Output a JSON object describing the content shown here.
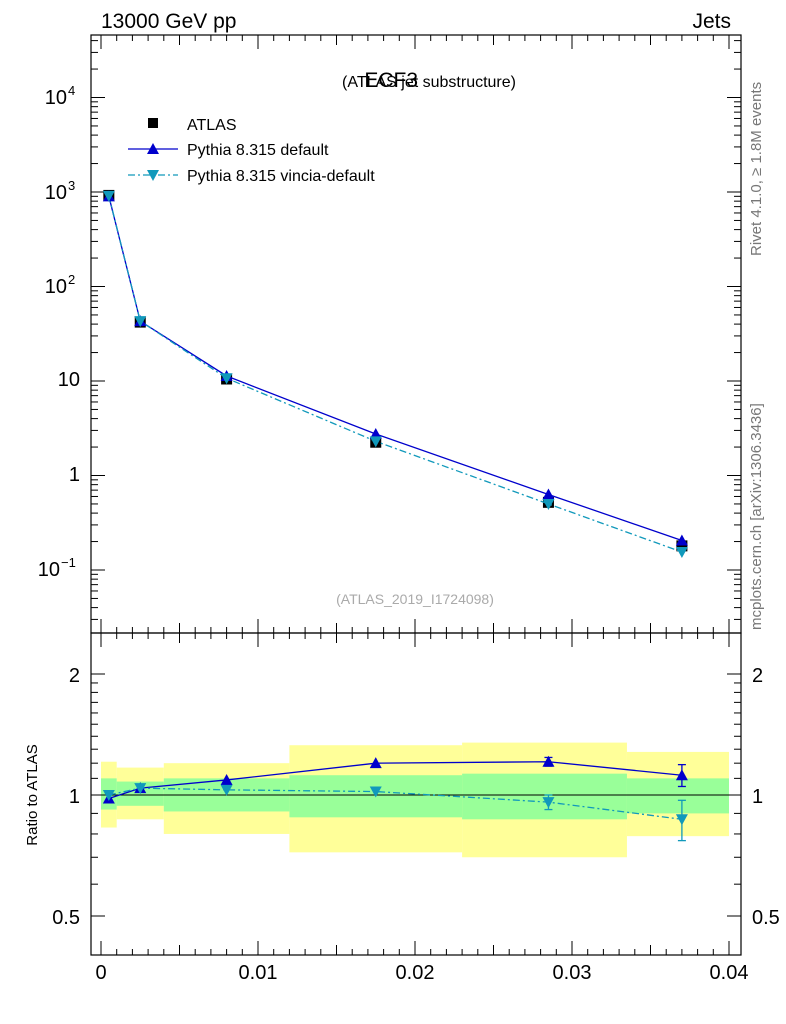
{
  "header": {
    "left": "13000 GeV pp",
    "right": "Jets"
  },
  "side_labels": {
    "rivet": "Rivet 4.1.0, ≥ 1.8M events",
    "mcplots": "mcplots.cern.ch [arXiv:1306.3436]"
  },
  "colors": {
    "atlas": "#000000",
    "default": "#0000cc",
    "vincia": "#1199bb",
    "band_outer": "#ffff99",
    "band_inner": "#99ff99"
  },
  "chart_data": [
    {
      "type": "line",
      "panel": "main",
      "title": "ECF3",
      "subtitle": "(ATLAS jet substructure)",
      "watermark": "(ATLAS_2019_I1724098)",
      "yscale": "log",
      "ylim": [
        0.025,
        40000
      ],
      "xlim": [
        -0.0005,
        0.04
      ],
      "ytick_labels": {
        "t4": [
          "10",
          "4"
        ],
        "t3": [
          "10",
          "3"
        ],
        "t2": [
          "10",
          "2"
        ],
        "t1": "10",
        "t0": "1",
        "tm1": [
          "10",
          "−1"
        ]
      },
      "legend": {
        "position": "top-left",
        "atlas": "ATLAS",
        "default": "Pythia 8.315 default",
        "vincia": "Pythia 8.315 vincia-default"
      },
      "series": [
        {
          "name": "ATLAS",
          "marker": "square",
          "x": [
            0.0005,
            0.0025,
            0.008,
            0.0175,
            0.0285,
            0.037
          ],
          "values": [
            920,
            42,
            10.5,
            2.25,
            0.52,
            0.18
          ]
        },
        {
          "name": "Pythia 8.315 default",
          "marker": "triangle-up",
          "x": [
            0.0005,
            0.0025,
            0.008,
            0.0175,
            0.0285,
            0.037
          ],
          "values": [
            900,
            43,
            11.3,
            2.75,
            0.63,
            0.205
          ]
        },
        {
          "name": "Pythia 8.315 vincia-default",
          "marker": "triangle-down",
          "x": [
            0.0005,
            0.0025,
            0.008,
            0.0175,
            0.0285,
            0.037
          ],
          "values": [
            910,
            43,
            10.7,
            2.3,
            0.5,
            0.155
          ]
        }
      ]
    },
    {
      "type": "line",
      "panel": "ratio",
      "ylabel": "Ratio to ATLAS",
      "yscale": "log",
      "ylim": [
        0.4,
        2.4
      ],
      "xlim": [
        -0.0005,
        0.04
      ],
      "ytick_labels": [
        "2",
        "1",
        "0.5"
      ],
      "xtick_labels": [
        "0",
        "0.01",
        "0.02",
        "0.03",
        "0.04"
      ],
      "bins": [
        {
          "x0": 0.0,
          "x1": 0.001,
          "in_lo": 0.92,
          "in_hi": 1.1,
          "out_lo": 0.83,
          "out_hi": 1.21
        },
        {
          "x0": 0.001,
          "x1": 0.004,
          "in_lo": 0.94,
          "in_hi": 1.08,
          "out_lo": 0.87,
          "out_hi": 1.17
        },
        {
          "x0": 0.004,
          "x1": 0.012,
          "in_lo": 0.91,
          "in_hi": 1.1,
          "out_lo": 0.8,
          "out_hi": 1.2
        },
        {
          "x0": 0.012,
          "x1": 0.023,
          "in_lo": 0.88,
          "in_hi": 1.12,
          "out_lo": 0.72,
          "out_hi": 1.33
        },
        {
          "x0": 0.023,
          "x1": 0.0335,
          "in_lo": 0.87,
          "in_hi": 1.13,
          "out_lo": 0.7,
          "out_hi": 1.35
        },
        {
          "x0": 0.0335,
          "x1": 0.04,
          "in_lo": 0.9,
          "in_hi": 1.1,
          "out_lo": 0.79,
          "out_hi": 1.28
        }
      ],
      "series": [
        {
          "name": "Pythia 8.315 default",
          "x": [
            0.0005,
            0.0025,
            0.008,
            0.0175,
            0.0285,
            0.037
          ],
          "values": [
            0.98,
            1.04,
            1.09,
            1.2,
            1.21,
            1.12
          ],
          "err": [
            0,
            0,
            0,
            0,
            0.03,
            0.07
          ]
        },
        {
          "name": "Pythia 8.315 vincia-default",
          "x": [
            0.0005,
            0.0025,
            0.008,
            0.0175,
            0.0285,
            0.037
          ],
          "values": [
            1.0,
            1.04,
            1.03,
            1.02,
            0.96,
            0.87
          ],
          "err": [
            0,
            0,
            0,
            0,
            0.04,
            0.1
          ]
        }
      ]
    }
  ]
}
